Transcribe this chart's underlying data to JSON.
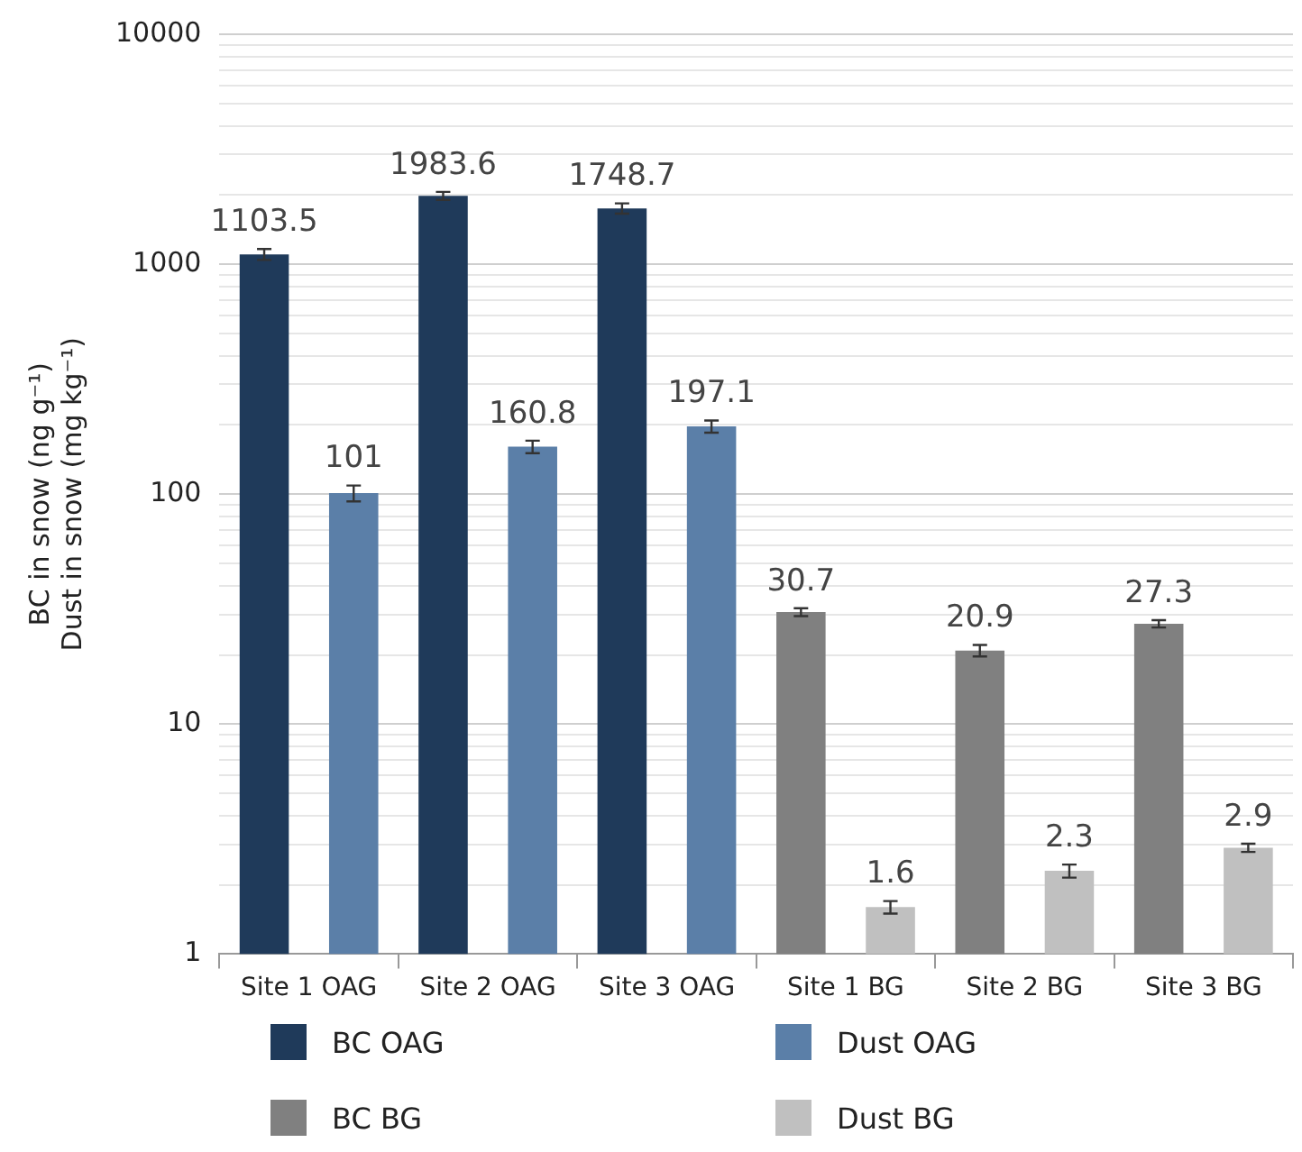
{
  "chart_data": {
    "type": "bar",
    "ylabel": "BC in snow (ng g⁻¹)\nDust in snow (mg kg⁻¹)",
    "categories": [
      "Site 1 OAG",
      "Site 2 OAG",
      "Site 3 OAG",
      "Site 1 BG",
      "Site 2 BG",
      "Site 3 BG"
    ],
    "series": [
      {
        "name": "BC OAG",
        "color": "#1f3a5a",
        "values": [
          1103.5,
          1983.6,
          1748.7,
          null,
          null,
          null
        ],
        "errors": [
          60,
          80,
          90,
          null,
          null,
          null
        ]
      },
      {
        "name": "Dust OAG",
        "color": "#5b7fa8",
        "values": [
          101,
          160.8,
          197.1,
          null,
          null,
          null
        ],
        "errors": [
          8,
          10,
          12,
          null,
          null,
          null
        ]
      },
      {
        "name": "BC BG",
        "color": "#808080",
        "values": [
          null,
          null,
          null,
          30.7,
          20.9,
          27.3
        ],
        "errors": [
          null,
          null,
          null,
          1.2,
          1.2,
          1.0
        ]
      },
      {
        "name": "Dust BG",
        "color": "#c0c0c0",
        "values": [
          null,
          null,
          null,
          1.6,
          2.3,
          2.9
        ],
        "errors": [
          null,
          null,
          null,
          0.1,
          0.15,
          0.12
        ]
      }
    ],
    "log": true,
    "ylim": [
      1,
      10000
    ],
    "yticks": [
      1,
      {
        "value": 2,
        "label": null
      },
      {
        "value": 3,
        "label": null
      },
      {
        "value": 4,
        "label": null
      },
      {
        "value": 5,
        "label": null
      },
      {
        "value": 6,
        "label": null
      },
      {
        "value": 7,
        "label": null
      },
      {
        "value": 8,
        "label": null
      },
      {
        "value": 9,
        "label": null
      },
      10,
      {
        "value": 20,
        "label": null
      },
      {
        "value": 30,
        "label": null
      },
      {
        "value": 40,
        "label": null
      },
      {
        "value": 50,
        "label": null
      },
      {
        "value": 60,
        "label": null
      },
      {
        "value": 70,
        "label": null
      },
      {
        "value": 80,
        "label": null
      },
      {
        "value": 90,
        "label": null
      },
      100,
      {
        "value": 200,
        "label": null
      },
      {
        "value": 300,
        "label": null
      },
      {
        "value": 400,
        "label": null
      },
      {
        "value": 500,
        "label": null
      },
      {
        "value": 600,
        "label": null
      },
      {
        "value": 700,
        "label": null
      },
      {
        "value": 800,
        "label": null
      },
      {
        "value": 900,
        "label": null
      },
      1000,
      {
        "value": 2000,
        "label": null
      },
      {
        "value": 3000,
        "label": null
      },
      {
        "value": 4000,
        "label": null
      },
      {
        "value": 5000,
        "label": null
      },
      {
        "value": 6000,
        "label": null
      },
      {
        "value": 7000,
        "label": null
      },
      {
        "value": 8000,
        "label": null
      },
      {
        "value": 9000,
        "label": null
      },
      10000
    ],
    "grid": "y",
    "data_labels": true,
    "legend": "bottom"
  }
}
